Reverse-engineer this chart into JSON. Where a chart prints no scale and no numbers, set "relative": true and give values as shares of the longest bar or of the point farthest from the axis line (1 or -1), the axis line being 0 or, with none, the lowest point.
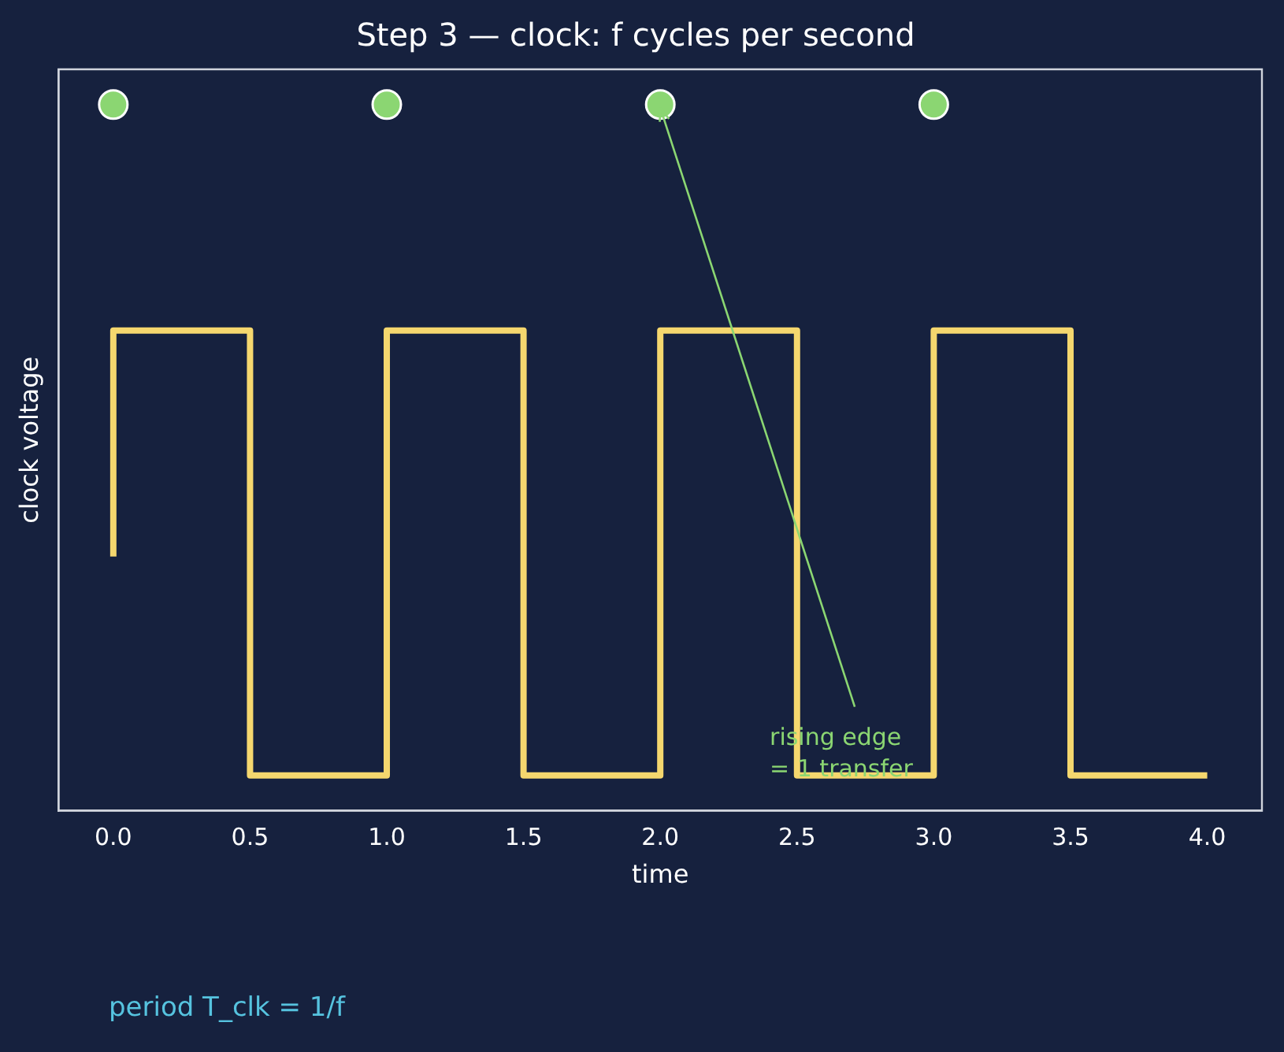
{
  "chart_data": {
    "type": "step",
    "title": "Step 3 — clock: f cycles per second",
    "xlabel": "time",
    "ylabel": "clock voltage",
    "relative": true,
    "xlim": [
      -0.2,
      4.2
    ],
    "xticks": [
      {
        "value": 0,
        "label": "0.0"
      },
      {
        "value": 0.5,
        "label": "0.5"
      },
      {
        "value": 1,
        "label": "1.0"
      },
      {
        "value": 1.5,
        "label": "1.5"
      },
      {
        "value": 2,
        "label": "2.0"
      },
      {
        "value": 2.5,
        "label": "2.5"
      },
      {
        "value": 3,
        "label": "3.0"
      },
      {
        "value": 3.5,
        "label": "3.5"
      },
      {
        "value": 4,
        "label": "4.0"
      }
    ],
    "grid": false,
    "legend": false,
    "series": [
      {
        "type": "step",
        "color": "#f5d76e",
        "marker": "none",
        "x": [
          0,
          0,
          0.5,
          1,
          1.5,
          2,
          2.5,
          3,
          3.5,
          4
        ],
        "values": [
          0.36,
          0.68,
          0.05,
          0.68,
          0.05,
          0.68,
          0.05,
          0.68,
          0.05,
          0.05
        ]
      },
      {
        "type": "scatter",
        "color": "#8bd672",
        "marker": "circle",
        "x": [
          0,
          1,
          2,
          3
        ],
        "values": [
          1,
          1,
          1,
          1
        ]
      }
    ],
    "annotations": [
      {
        "text": "rising edge\n= 1 transfer",
        "x": 2,
        "y": 1
      },
      "period T_clk = 1/f"
    ]
  }
}
